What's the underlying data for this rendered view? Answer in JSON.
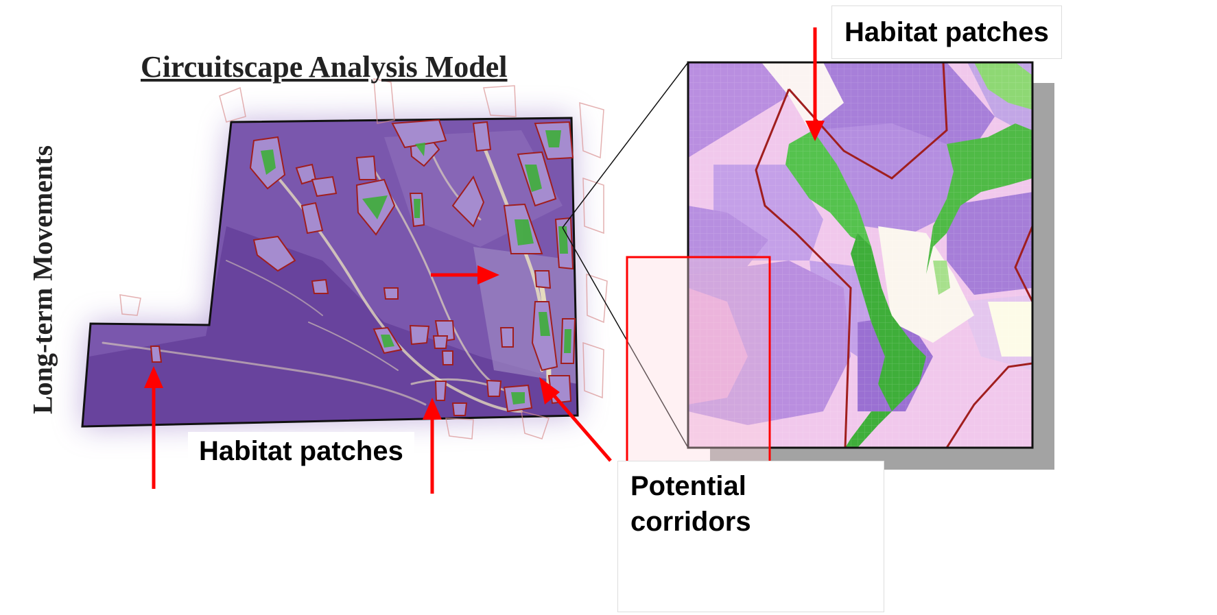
{
  "map": {
    "title": "Circuitscape Analysis Model",
    "side_label": "Long-term Movements",
    "callouts": [
      "Habitat patches",
      "Habitat patches",
      "Potential corridors"
    ]
  },
  "colors": {
    "region_fill": "#6f4aa3",
    "patch_outline": "#a01e1e",
    "corridor": "#f3ecc0",
    "habitat_green": "#3fae3a",
    "arrow": "#ff0000",
    "inset_background": "#f1c8ec"
  }
}
